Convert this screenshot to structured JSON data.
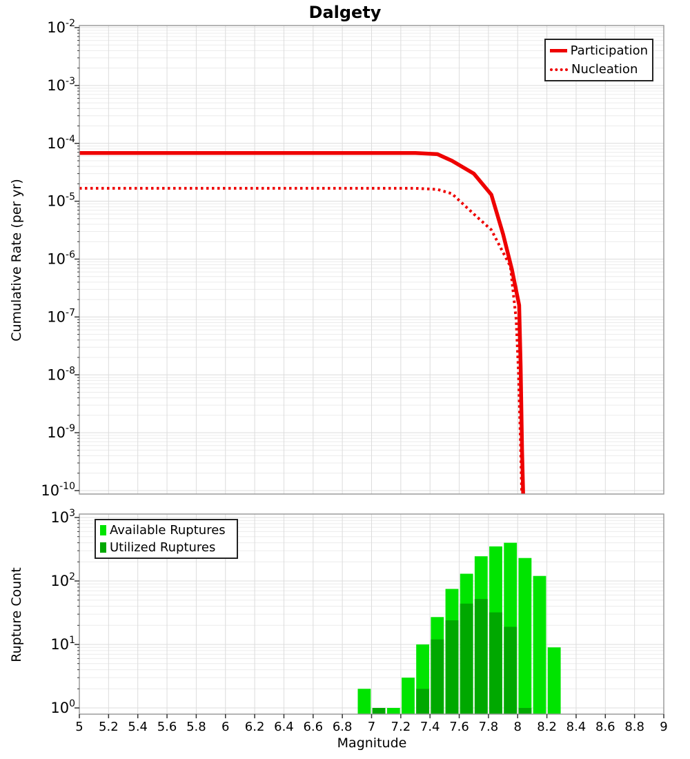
{
  "title": "Dalgety",
  "colors": {
    "line_red": "#ee0000",
    "available_green": "#00e400",
    "utilized_green": "#00a800",
    "grid_minor": "#ececec",
    "grid_major": "#dcdcdc",
    "frame": "#9b9b9b",
    "tick": "#333333"
  },
  "chart_data": [
    {
      "type": "line",
      "title": "Dalgety",
      "xlabel": "",
      "ylabel": "Cumulative Rate (per yr)",
      "xlim": [
        5,
        9
      ],
      "ylog_range": [
        -10,
        -2
      ],
      "grid": true,
      "legend_position": "top-right",
      "y_tick_exponents": [
        -2,
        -3,
        -4,
        -5,
        -6,
        -7,
        -8,
        -9,
        -10
      ],
      "series": [
        {
          "name": "Participation",
          "style": "solid",
          "color": "#ee0000",
          "points": [
            [
              5.0,
              6.8e-05
            ],
            [
              7.3,
              6.8e-05
            ],
            [
              7.45,
              6.5e-05
            ],
            [
              7.55,
              5e-05
            ],
            [
              7.7,
              3e-05
            ],
            [
              7.82,
              1.3e-05
            ],
            [
              7.9,
              2.7e-06
            ],
            [
              7.96,
              6.7e-07
            ],
            [
              8.01,
              1.6e-07
            ],
            [
              8.02,
              1.5e-08
            ],
            [
              8.03,
              5e-10
            ],
            [
              8.04,
              5e-11
            ]
          ]
        },
        {
          "name": "Nucleation",
          "style": "dotted",
          "color": "#ee0000",
          "points": [
            [
              5.0,
              1.67e-05
            ],
            [
              7.3,
              1.67e-05
            ],
            [
              7.45,
              1.6e-05
            ],
            [
              7.55,
              1.35e-05
            ],
            [
              7.7,
              6e-06
            ],
            [
              7.82,
              3.2e-06
            ],
            [
              7.9,
              1.3e-06
            ],
            [
              7.95,
              7.5e-07
            ],
            [
              7.99,
              9e-08
            ],
            [
              8.005,
              1.2e-08
            ],
            [
              8.02,
              6e-10
            ],
            [
              8.03,
              5e-11
            ]
          ]
        }
      ]
    },
    {
      "type": "bar",
      "title": "",
      "xlabel": "Magnitude",
      "ylabel": "Rupture Count",
      "xlim": [
        5,
        9
      ],
      "ylog_range": [
        0,
        3
      ],
      "grid": true,
      "legend_position": "top-left",
      "bin_width": 0.1,
      "categories": [
        6.95,
        7.05,
        7.15,
        7.25,
        7.35,
        7.45,
        7.55,
        7.65,
        7.75,
        7.85,
        7.95,
        8.05,
        8.15,
        8.25
      ],
      "x_ticks": [
        5,
        5.2,
        5.4,
        5.6,
        5.8,
        6,
        6.2,
        6.4,
        6.6,
        6.8,
        7,
        7.2,
        7.4,
        7.6,
        7.8,
        8,
        8.2,
        8.4,
        8.6,
        8.8,
        9
      ],
      "x_tick_labels": [
        "5",
        "5.2",
        "5.4",
        "5.6",
        "5.8",
        "6",
        "6.2",
        "6.4",
        "6.6",
        "6.8",
        "7",
        "7.2",
        "7.4",
        "7.6",
        "7.8",
        "8",
        "8.2",
        "8.4",
        "8.6",
        "8.8",
        "9"
      ],
      "y_tick_exponents": [
        3,
        2,
        1,
        0
      ],
      "series": [
        {
          "name": "Available Ruptures",
          "color": "#00e400",
          "values": [
            2,
            1,
            1,
            3,
            10,
            27,
            75,
            130,
            245,
            350,
            400,
            230,
            120,
            9
          ]
        },
        {
          "name": "Utilized Ruptures",
          "color": "#00a800",
          "values": [
            0,
            1,
            0,
            0,
            2,
            12,
            24,
            44,
            52,
            32,
            19,
            1,
            0,
            0
          ]
        }
      ]
    }
  ]
}
